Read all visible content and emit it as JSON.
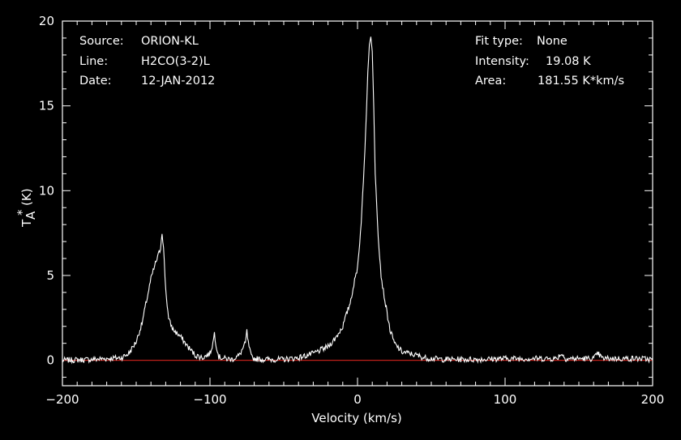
{
  "chart_data": {
    "type": "line",
    "xlabel": "Velocity (km/s)",
    "ylabel_main": "T",
    "ylabel_sub": "A",
    "ylabel_sup": "*",
    "ylabel_unit": "(K)",
    "xlim": [
      -200,
      200
    ],
    "ylim": [
      -1.5,
      20
    ],
    "xticks": [
      -200,
      -100,
      0,
      100,
      200
    ],
    "xtick_labels": [
      "−200",
      "−100",
      "0",
      "100",
      "200"
    ],
    "yticks": [
      0,
      5,
      10,
      15,
      20
    ],
    "ytick_labels": [
      "0",
      "5",
      "10",
      "15",
      "20"
    ],
    "baseline": 0,
    "colors": {
      "spectrum": "#ffffff",
      "baseline": "#c0201a",
      "axes": "#ffffff",
      "background": "#000000"
    },
    "series": [
      {
        "x": [
          -200,
          -180,
          -160,
          -155,
          -150,
          -146,
          -143,
          -140,
          -137,
          -135,
          -133.5,
          -132.5,
          -131.5,
          -130,
          -128,
          -125,
          -120,
          -115,
          -110,
          -105,
          -100,
          -98,
          -97,
          -96,
          -94,
          -90,
          -85,
          -80,
          -76,
          -75,
          -74,
          -72,
          -70,
          -65,
          -60,
          -50,
          -40,
          -30,
          -20,
          -15,
          -10,
          -5,
          0,
          2,
          4,
          6,
          7,
          8,
          9,
          10,
          11,
          12,
          14,
          16,
          18,
          20,
          22,
          25,
          30,
          35,
          40,
          45,
          50,
          60,
          80,
          100,
          120,
          135,
          138,
          141,
          150,
          160,
          163,
          166,
          170,
          180,
          190,
          200
        ],
        "y": [
          0,
          0.05,
          0.15,
          0.4,
          1.1,
          2.2,
          3.5,
          4.8,
          5.7,
          6.2,
          6.6,
          7.6,
          6.6,
          4.2,
          2.4,
          1.8,
          1.4,
          0.8,
          0.3,
          0.15,
          0.4,
          1.0,
          1.6,
          1.0,
          0.2,
          0.1,
          0.05,
          0.3,
          1.0,
          1.7,
          1.0,
          0.2,
          0.1,
          0.05,
          0.05,
          0.05,
          0.15,
          0.4,
          0.8,
          1.3,
          2.0,
          3.4,
          5.5,
          7.5,
          10.5,
          14.5,
          17.0,
          18.6,
          19.08,
          18.2,
          15.0,
          11.0,
          7.4,
          5.0,
          3.8,
          2.8,
          1.8,
          1.0,
          0.5,
          0.4,
          0.3,
          0.15,
          0.1,
          0.05,
          0.05,
          0.1,
          0.1,
          0.1,
          0.4,
          0.1,
          0.1,
          0.1,
          0.4,
          0.1,
          0.1,
          0.1,
          0.1,
          0.05
        ]
      }
    ]
  },
  "info_left": {
    "source_key": "Source:",
    "source_value": "ORION-KL",
    "line_key": "Line:",
    "line_value": "H2CO(3-2)L",
    "date_key": "Date:",
    "date_value": "12-JAN-2012"
  },
  "info_right": {
    "fit_key": "Fit type:",
    "fit_value": "None",
    "intensity_key": "Intensity:",
    "intensity_value": "19.08 K",
    "area_key": "Area:",
    "area_value": "181.55 K*km/s"
  }
}
